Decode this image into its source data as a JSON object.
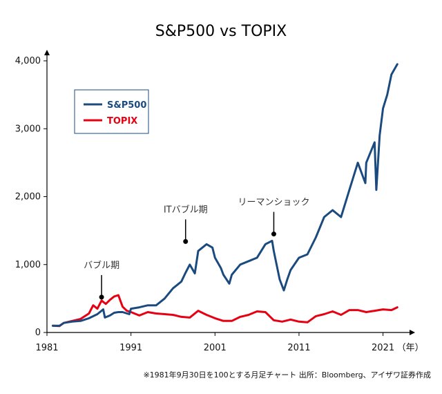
{
  "chart_data": {
    "type": "line",
    "title": "S&P500 vs TOPIX",
    "xlabel": "",
    "ylabel": "",
    "xlim": [
      1981,
      2023.5
    ],
    "ylim": [
      0,
      4000
    ],
    "x_ticks": [
      "1981",
      "1991",
      "2001",
      "2011",
      "2021"
    ],
    "x_unit": "（年）",
    "y_ticks": [
      "0",
      "1,000",
      "2,000",
      "3,000",
      "4,000"
    ],
    "legend_position": "top-left",
    "grid": false,
    "series": [
      {
        "name": "S&P500",
        "color": "#1b4a7f",
        "x": [
          1981.7,
          1982.5,
          1983,
          1984,
          1985,
          1986,
          1987,
          1987.7,
          1987.9,
          1988.5,
          1989,
          1989.5,
          1990,
          1990.8,
          1991,
          1992,
          1993,
          1994,
          1995,
          1996,
          1997,
          1997.5,
          1998,
          1998.6,
          1999,
          2000,
          2000.7,
          2001,
          2001.7,
          2002,
          2002.7,
          2003,
          2004,
          2005,
          2006,
          2007,
          2007.8,
          2008,
          2008.7,
          2009.2,
          2009.6,
          2010,
          2011,
          2012,
          2013,
          2014,
          2015,
          2016,
          2017,
          2018,
          2018.9,
          2019,
          2020,
          2020.2,
          2020.6,
          2021,
          2021.5,
          2022,
          2022.7
        ],
        "y": [
          100,
          100,
          140,
          160,
          170,
          210,
          270,
          340,
          220,
          250,
          290,
          300,
          300,
          270,
          350,
          370,
          400,
          400,
          500,
          650,
          750,
          880,
          1000,
          870,
          1200,
          1300,
          1250,
          1100,
          950,
          850,
          720,
          850,
          1000,
          1050,
          1100,
          1300,
          1350,
          1200,
          780,
          620,
          780,
          920,
          1100,
          1150,
          1400,
          1700,
          1800,
          1700,
          2100,
          2500,
          2200,
          2500,
          2800,
          2100,
          2900,
          3300,
          3500,
          3800,
          3950
        ]
      },
      {
        "name": "TOPIX",
        "color": "#e60012",
        "x": [
          1981.7,
          1982.5,
          1983,
          1984,
          1985,
          1986,
          1986.5,
          1987,
          1987.5,
          1988,
          1988.5,
          1989,
          1989.5,
          1990,
          1990.5,
          1991,
          1992,
          1993,
          1994,
          1995,
          1996,
          1997,
          1998,
          1999,
          2000,
          2001,
          2002,
          2003,
          2004,
          2005,
          2006,
          2007,
          2008,
          2009,
          2010,
          2011,
          2012,
          2013,
          2014,
          2015,
          2016,
          2017,
          2018,
          2019,
          2020,
          2021,
          2022,
          2022.7
        ],
        "y": [
          100,
          95,
          140,
          170,
          200,
          280,
          400,
          350,
          470,
          420,
          480,
          530,
          550,
          380,
          320,
          300,
          250,
          300,
          280,
          270,
          260,
          230,
          220,
          320,
          260,
          210,
          170,
          170,
          230,
          260,
          310,
          300,
          180,
          160,
          190,
          160,
          150,
          240,
          270,
          310,
          260,
          330,
          330,
          300,
          320,
          340,
          330,
          370
        ]
      }
    ],
    "annotations": [
      {
        "text": "バブル期",
        "x": 1987.5,
        "y": 520
      },
      {
        "text": "ITバブル期",
        "x": 1997.5,
        "y": 1340
      },
      {
        "text": "リーマンショック",
        "x": 2008.0,
        "y": 1450
      }
    ]
  },
  "footnote": "※1981年9月30日を100とする月足チャート 出所：Bloomberg、アイザワ証券作成"
}
